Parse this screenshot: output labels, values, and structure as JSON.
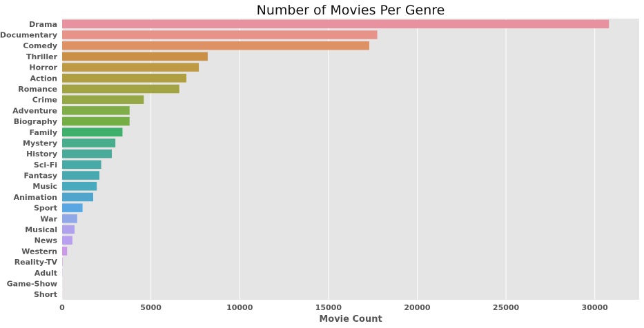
{
  "chart_data": {
    "type": "bar",
    "orientation": "horizontal",
    "title": "Number of Movies Per Genre",
    "xlabel": "Movie Count",
    "ylabel": "",
    "xlim": [
      0,
      32500
    ],
    "xticks": [
      0,
      5000,
      10000,
      15000,
      20000,
      25000,
      30000
    ],
    "grid": true,
    "categories": [
      "Drama",
      "Documentary",
      "Comedy",
      "Thriller",
      "Horror",
      "Action",
      "Romance",
      "Crime",
      "Adventure",
      "Biography",
      "Family",
      "Mystery",
      "History",
      "Sci-Fi",
      "Fantasy",
      "Music",
      "Animation",
      "Sport",
      "War",
      "Musical",
      "News",
      "Western",
      "Reality-TV",
      "Adult",
      "Game-Show",
      "Short"
    ],
    "values": [
      30800,
      17750,
      17300,
      8200,
      7700,
      7000,
      6600,
      4600,
      3800,
      3800,
      3400,
      3000,
      2800,
      2200,
      2100,
      1950,
      1750,
      1150,
      850,
      700,
      580,
      280,
      20,
      10,
      5,
      5
    ],
    "colors": [
      "#e8929f",
      "#e8938a",
      "#dd9164",
      "#ca9046",
      "#bf9a45",
      "#af9f40",
      "#a2a443",
      "#95a845",
      "#7fad47",
      "#75ae44",
      "#3eb06c",
      "#48ad8c",
      "#4aab9b",
      "#48aaa6",
      "#48aab0",
      "#49a9bd",
      "#4fa5cc",
      "#58a7e3",
      "#91a8e8",
      "#b0a1ec",
      "#b89ff0",
      "#cb98ea",
      "#d993e0",
      "#e08fd4",
      "#e48dc8",
      "#e78fb6"
    ],
    "background": "#e5e5e5"
  }
}
